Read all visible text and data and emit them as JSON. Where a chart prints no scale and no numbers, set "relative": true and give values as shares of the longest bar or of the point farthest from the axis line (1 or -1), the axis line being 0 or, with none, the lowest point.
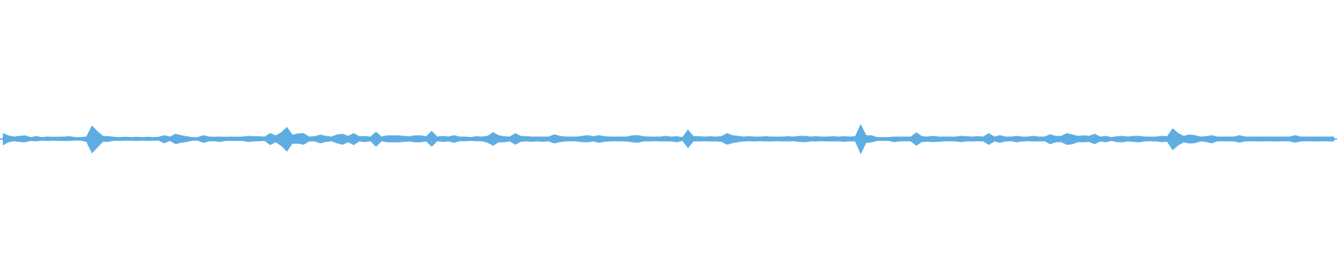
{
  "chart_data": {
    "type": "area",
    "relative": true,
    "categories": [
      null,
      null,
      null,
      null,
      null,
      null,
      null,
      null,
      null,
      null,
      null,
      null,
      null,
      null,
      null,
      null,
      null,
      null,
      null,
      null,
      null,
      null,
      null,
      null,
      null,
      null,
      null,
      null,
      null,
      null,
      null,
      null,
      null,
      null,
      null,
      null,
      null,
      null,
      null,
      null,
      null,
      null,
      null,
      null,
      null,
      null,
      null,
      null,
      null,
      null,
      null,
      null,
      null,
      null,
      null,
      null,
      null,
      null,
      null,
      null,
      null,
      null,
      null,
      null,
      null,
      null,
      null,
      null,
      null,
      null,
      null,
      null,
      null,
      null,
      null,
      null,
      null,
      null,
      null,
      null,
      null,
      null,
      null,
      null,
      null,
      null,
      null,
      null,
      null,
      null,
      null,
      null,
      null,
      null,
      null,
      null,
      null,
      null,
      null,
      null,
      null,
      null,
      null,
      null,
      null,
      null,
      null,
      null,
      null,
      null,
      null,
      null,
      null,
      null,
      null,
      null,
      null,
      null,
      null,
      null,
      null,
      null,
      null,
      null,
      null,
      null,
      null,
      null,
      null,
      null,
      null,
      null,
      null,
      null,
      null,
      null,
      null,
      null,
      null,
      null,
      null,
      null,
      null,
      null,
      null,
      null,
      null,
      null,
      null,
      null,
      null,
      null,
      null,
      null,
      null,
      null,
      null,
      null,
      null,
      null,
      null,
      null,
      null,
      null,
      null,
      null,
      null,
      null,
      null,
      null,
      null,
      null,
      null,
      null,
      null,
      null,
      null,
      null,
      null,
      null,
      null,
      null,
      null,
      null,
      null,
      null,
      null,
      null,
      null,
      null,
      null,
      null,
      null,
      null,
      null,
      null,
      null,
      null,
      null,
      null,
      null,
      null,
      null,
      null,
      null,
      null,
      null,
      null,
      null,
      null,
      null,
      null,
      null,
      null,
      null,
      null,
      null,
      null,
      null,
      null,
      null,
      null,
      null,
      null,
      null,
      null,
      null,
      null,
      null,
      null,
      null,
      null,
      null,
      null,
      null,
      null,
      null,
      null,
      null,
      null
    ],
    "series": [
      {
        "color": "#5dade2",
        "values": [
          0.39,
          0.24,
          0.16,
          0.21,
          0.24,
          0.13,
          0.19,
          0.13,
          0.16,
          0.15,
          0.15,
          0.16,
          0.18,
          0.13,
          0.13,
          0.16,
          0.89,
          0.51,
          0.21,
          0.18,
          0.15,
          0.13,
          0.15,
          0.13,
          0.15,
          0.13,
          0.15,
          0.13,
          0.15,
          0.25,
          0.16,
          0.34,
          0.25,
          0.18,
          0.13,
          0.13,
          0.25,
          0.16,
          0.15,
          0.16,
          0.15,
          0.16,
          0.15,
          0.16,
          0.21,
          0.18,
          0.18,
          0.16,
          0.39,
          0.24,
          0.44,
          0.8,
          0.28,
          0.36,
          0.39,
          0.16,
          0.18,
          0.28,
          0.21,
          0.16,
          0.3,
          0.34,
          0.21,
          0.39,
          0.18,
          0.19,
          0.16,
          0.48,
          0.16,
          0.24,
          0.24,
          0.24,
          0.21,
          0.18,
          0.24,
          0.24,
          0.18,
          0.53,
          0.16,
          0.21,
          0.16,
          0.25,
          0.16,
          0.16,
          0.13,
          0.18,
          0.16,
          0.21,
          0.44,
          0.25,
          0.18,
          0.16,
          0.39,
          0.21,
          0.18,
          0.16,
          0.16,
          0.16,
          0.16,
          0.31,
          0.21,
          0.16,
          0.16,
          0.16,
          0.21,
          0.25,
          0.18,
          0.25,
          0.18,
          0.16,
          0.16,
          0.16,
          0.16,
          0.24,
          0.25,
          0.18,
          0.16,
          0.16,
          0.16,
          0.21,
          0.16,
          0.18,
          0.13,
          0.62,
          0.18,
          0.18,
          0.16,
          0.18,
          0.16,
          0.18,
          0.39,
          0.25,
          0.21,
          0.16,
          0.18,
          0.16,
          0.16,
          0.18,
          0.16,
          0.16,
          0.16,
          0.18,
          0.16,
          0.21,
          0.21,
          0.16,
          0.18,
          0.16,
          0.16,
          0.18,
          0.16,
          0.18,
          0.16,
          0.18,
          0.98,
          0.25,
          0.24,
          0.13,
          0.13,
          0.13,
          0.16,
          0.16,
          0.16,
          0.16,
          0.44,
          0.18,
          0.16,
          0.21,
          0.16,
          0.16,
          0.16,
          0.16,
          0.21,
          0.18,
          0.16,
          0.18,
          0.16,
          0.39,
          0.16,
          0.25,
          0.16,
          0.16,
          0.21,
          0.16,
          0.16,
          0.21,
          0.16,
          0.16,
          0.31,
          0.21,
          0.21,
          0.39,
          0.3,
          0.21,
          0.24,
          0.21,
          0.34,
          0.16,
          0.21,
          0.13,
          0.18,
          0.21,
          0.16,
          0.21,
          0.21,
          0.16,
          0.16,
          0.16,
          0.21,
          0.18,
          0.71,
          0.39,
          0.21,
          0.3,
          0.25,
          0.16,
          0.18,
          0.25,
          0.16,
          0.16,
          0.16,
          0.16,
          0.25,
          0.16,
          0.16,
          0.16,
          0.16,
          0.16,
          0.16,
          0.16,
          0.16,
          0.16,
          0.25,
          0.16,
          0.16,
          0.16,
          0.16,
          0.16,
          0.16,
          0.16
        ]
      },
      {
        "color": "#5eaee3",
        "values": [
          -0.42,
          -0.22,
          -0.15,
          -0.19,
          -0.22,
          -0.13,
          -0.15,
          -0.11,
          -0.13,
          -0.11,
          -0.13,
          -0.13,
          -0.13,
          -0.1,
          -0.1,
          -0.19,
          -0.94,
          -0.56,
          -0.18,
          -0.18,
          -0.11,
          -0.13,
          -0.11,
          -0.11,
          -0.13,
          -0.11,
          -0.13,
          -0.11,
          -0.11,
          -0.28,
          -0.13,
          -0.33,
          -0.25,
          -0.19,
          -0.11,
          -0.11,
          -0.25,
          -0.16,
          -0.15,
          -0.19,
          -0.13,
          -0.13,
          -0.13,
          -0.13,
          -0.19,
          -0.16,
          -0.15,
          -0.13,
          -0.4,
          -0.22,
          -0.45,
          -0.83,
          -0.31,
          -0.31,
          -0.37,
          -0.16,
          -0.16,
          -0.28,
          -0.19,
          -0.15,
          -0.28,
          -0.37,
          -0.22,
          -0.4,
          -0.16,
          -0.21,
          -0.15,
          -0.51,
          -0.15,
          -0.22,
          -0.22,
          -0.22,
          -0.19,
          -0.16,
          -0.22,
          -0.22,
          -0.16,
          -0.51,
          -0.15,
          -0.19,
          -0.16,
          -0.25,
          -0.15,
          -0.15,
          -0.13,
          -0.15,
          -0.15,
          -0.24,
          -0.44,
          -0.22,
          -0.22,
          -0.16,
          -0.37,
          -0.18,
          -0.16,
          -0.18,
          -0.16,
          -0.18,
          -0.16,
          -0.3,
          -0.21,
          -0.16,
          -0.15,
          -0.16,
          -0.21,
          -0.22,
          -0.16,
          -0.25,
          -0.18,
          -0.16,
          -0.15,
          -0.16,
          -0.16,
          -0.22,
          -0.25,
          -0.16,
          -0.16,
          -0.15,
          -0.16,
          -0.16,
          -0.16,
          -0.22,
          -0.13,
          -0.6,
          -0.16,
          -0.16,
          -0.15,
          -0.16,
          -0.16,
          -0.18,
          -0.37,
          -0.27,
          -0.21,
          -0.16,
          -0.15,
          -0.16,
          -0.15,
          -0.16,
          -0.16,
          -0.15,
          -0.16,
          -0.16,
          -0.15,
          -0.19,
          -0.22,
          -0.16,
          -0.16,
          -0.15,
          -0.16,
          -0.16,
          -0.16,
          -0.18,
          -0.16,
          -0.16,
          -1,
          -0.25,
          -0.22,
          -0.13,
          -0.13,
          -0.13,
          -0.21,
          -0.16,
          -0.15,
          -0.16,
          -0.44,
          -0.19,
          -0.18,
          -0.21,
          -0.18,
          -0.16,
          -0.15,
          -0.16,
          -0.21,
          -0.16,
          -0.16,
          -0.15,
          -0.16,
          -0.39,
          -0.16,
          -0.25,
          -0.16,
          -0.15,
          -0.22,
          -0.16,
          -0.15,
          -0.16,
          -0.16,
          -0.15,
          -0.34,
          -0.22,
          -0.21,
          -0.39,
          -0.34,
          -0.21,
          -0.22,
          -0.19,
          -0.34,
          -0.16,
          -0.22,
          -0.13,
          -0.21,
          -0.22,
          -0.16,
          -0.19,
          -0.22,
          -0.16,
          -0.15,
          -0.16,
          -0.21,
          -0.18,
          -0.74,
          -0.42,
          -0.22,
          -0.3,
          -0.27,
          -0.16,
          -0.19,
          -0.28,
          -0.16,
          -0.15,
          -0.16,
          -0.16,
          -0.24,
          -0.16,
          -0.15,
          -0.16,
          -0.16,
          -0.15,
          -0.16,
          -0.16,
          -0.15,
          -0.16,
          -0.24,
          -0.16,
          -0.15,
          -0.16,
          -0.16,
          -0.15,
          -0.16,
          -0.16
        ]
      }
    ],
    "ref_lines": [
      {
        "axis": "y",
        "value": 0,
        "color": "#5dade2"
      }
    ]
  }
}
